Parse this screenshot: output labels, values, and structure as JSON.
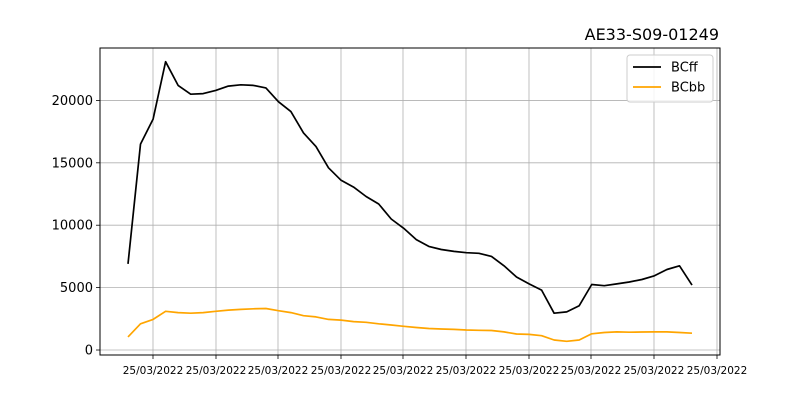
{
  "chart_data": {
    "type": "line",
    "title": "AE33-S09-01249",
    "xlabel": "",
    "ylabel": "",
    "x_tick_labels": [
      "25/03/2022",
      "25/03/2022",
      "25/03/2022",
      "25/03/2022",
      "25/03/2022",
      "25/03/2022",
      "25/03/2022",
      "25/03/2022",
      "25/03/2022",
      "25/03/2022"
    ],
    "yticks": [
      0,
      5000,
      10000,
      15000,
      20000
    ],
    "ylim": [
      -400,
      24200
    ],
    "grid": true,
    "legend_position": "top-right",
    "series": [
      {
        "name": "BCff",
        "color": "#000000",
        "values": [
          6900,
          16500,
          18500,
          23100,
          21200,
          20500,
          20550,
          20800,
          21150,
          21250,
          21200,
          21000,
          19900,
          19100,
          17400,
          16300,
          14600,
          13600,
          13050,
          12300,
          11700,
          10500,
          9750,
          8850,
          8300,
          8050,
          7900,
          7800,
          7750,
          7500,
          6750,
          5850,
          5300,
          4800,
          2950,
          3050,
          3550,
          5250,
          5150,
          5300,
          5450,
          5650,
          5950,
          6450,
          6750,
          5200
        ]
      },
      {
        "name": "BCbb",
        "color": "#ffa500",
        "values": [
          1050,
          2100,
          2450,
          3100,
          3000,
          2950,
          3000,
          3100,
          3200,
          3250,
          3300,
          3330,
          3150,
          3000,
          2750,
          2650,
          2450,
          2400,
          2280,
          2220,
          2100,
          2000,
          1900,
          1800,
          1720,
          1680,
          1650,
          1600,
          1580,
          1560,
          1450,
          1280,
          1250,
          1150,
          800,
          700,
          800,
          1300,
          1400,
          1450,
          1430,
          1440,
          1450,
          1450,
          1400,
          1350
        ]
      }
    ]
  }
}
